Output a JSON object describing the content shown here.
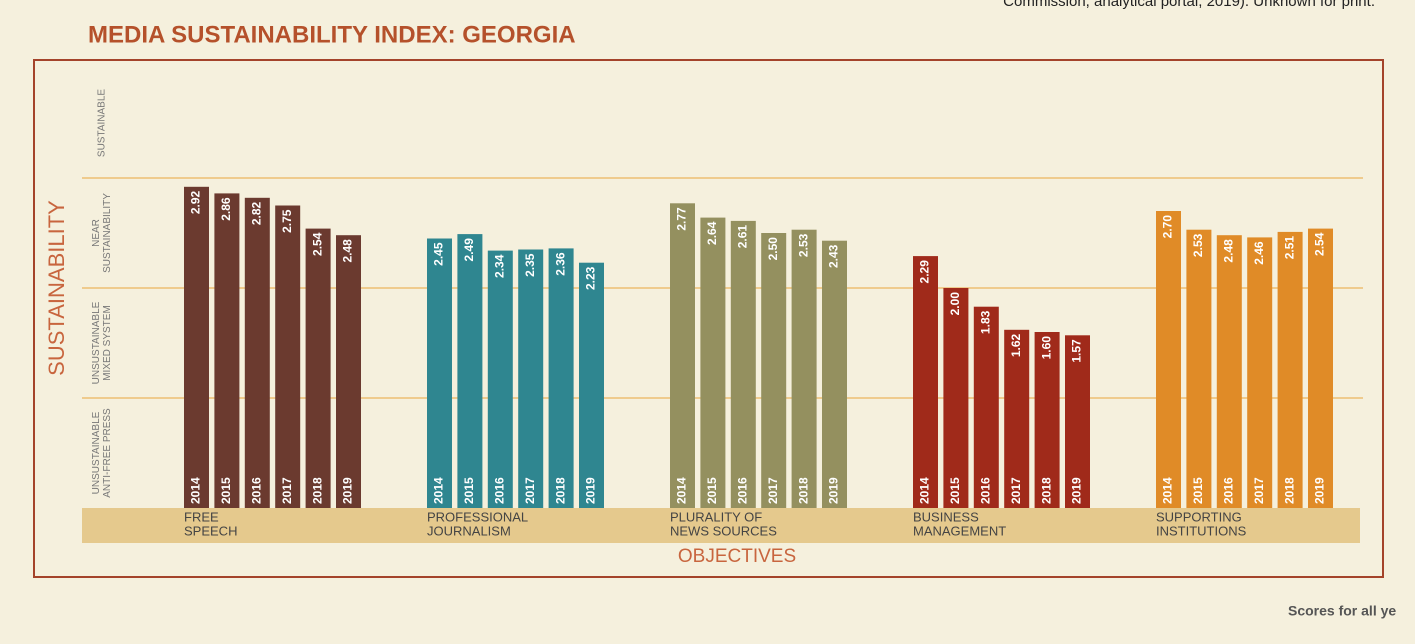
{
  "header_note": "Commission, analytical portal, 2019). Unknown for print.",
  "footer_note": "Scores for all ye",
  "chart_data": {
    "type": "bar",
    "title": "MEDIA SUSTAINABILITY INDEX: GEORGIA",
    "y_label": "SUSTAINABILITY",
    "x_label": "OBJECTIVES",
    "bands": [
      [
        "UNSUSTAINABLE",
        "ANTI-FREE PRESS"
      ],
      [
        "UNSUSTAINABLE",
        "MIXED SYSTEM"
      ],
      [
        "NEAR",
        "SUSTAINABILITY"
      ],
      [
        "SUSTAINABLE"
      ]
    ],
    "categories": [
      [
        "FREE",
        "SPEECH"
      ],
      [
        "PROFESSIONAL",
        "JOURNALISM"
      ],
      [
        "PLURALITY OF",
        "NEWS SOURCES"
      ],
      [
        "BUSINESS",
        "MANAGEMENT"
      ],
      [
        "SUPPORTING",
        "INSTITUTIONS"
      ]
    ],
    "colors": [
      "#6b3a2f",
      "#2f8690",
      "#94905f",
      "#a02a1a",
      "#e08b27"
    ],
    "series": [
      {
        "name": "2014",
        "values": [
          2.92,
          2.45,
          2.77,
          2.29,
          2.7
        ],
        "value_labels": [
          "2.92",
          "2.45",
          "2.77",
          "2.29",
          "2.70"
        ]
      },
      {
        "name": "2015",
        "values": [
          2.86,
          2.49,
          2.64,
          2.0,
          2.53
        ],
        "value_labels": [
          "2.86",
          "2.49",
          "2.64",
          "2.00",
          "2.53"
        ]
      },
      {
        "name": "2016",
        "values": [
          2.82,
          2.34,
          2.61,
          1.83,
          2.48
        ],
        "value_labels": [
          "2.82",
          "2.34",
          "2.61",
          "1.83",
          "2.48"
        ]
      },
      {
        "name": "2017",
        "values": [
          2.75,
          2.35,
          2.5,
          1.62,
          2.46
        ],
        "value_labels": [
          "2.75",
          "2.35",
          "2.50",
          "1.62",
          "2.46"
        ]
      },
      {
        "name": "2018",
        "values": [
          2.54,
          2.36,
          2.53,
          1.6,
          2.51
        ],
        "value_labels": [
          "2.54",
          "2.36",
          "2.53",
          "1.60",
          "2.51"
        ]
      },
      {
        "name": "2019",
        "values": [
          2.48,
          2.23,
          2.43,
          1.57,
          2.54
        ],
        "value_labels": [
          "2.48",
          "2.23",
          "2.43",
          "1.57",
          "2.54"
        ]
      }
    ],
    "ylim": [
      0,
      4
    ],
    "yticks": [
      1,
      2,
      3
    ],
    "grid": true
  }
}
